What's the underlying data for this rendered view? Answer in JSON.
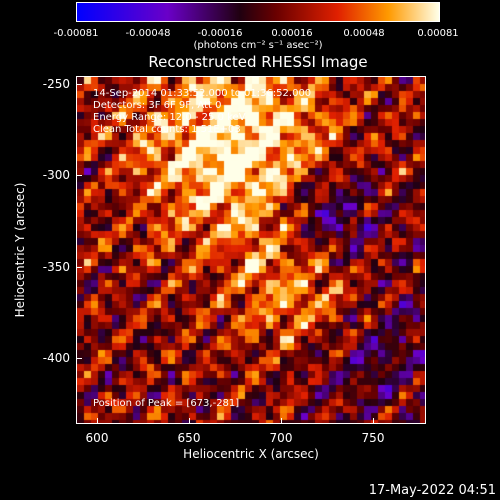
{
  "chart_data": {
    "type": "heatmap",
    "title": "Reconstructed RHESSI Image",
    "xlabel": "Heliocentric X (arcsec)",
    "ylabel": "Heliocentric Y (arcsec)",
    "xlim": [
      588,
      778
    ],
    "ylim": [
      -437,
      -244
    ],
    "x_ticks": [
      "600",
      "650",
      "700",
      "750"
    ],
    "y_ticks": [
      "-250",
      "-300",
      "-350",
      "-400"
    ],
    "colorbar": {
      "ticks": [
        "-0.00081",
        "-0.00048",
        "-0.00016",
        "0.00016",
        "0.00048",
        "0.00081"
      ],
      "units": "(photons cm⁻² s⁻¹ asec⁻²)",
      "range": [
        -0.00081,
        0.00081
      ]
    },
    "annotations": {
      "time_range": "14-Sep-2014 01:33:52.000 to 01:36:52.000",
      "detectors": "Detectors: 3F 6F 9F, Att 0",
      "energy": "Energy Range: 12.0 - 25.0 keV",
      "clean": "Clean    Total counts: 1.51E+03",
      "peak": "Position of Peak = [673,-281]"
    },
    "peak": {
      "x": 673,
      "y": -281
    }
  },
  "footer": {
    "timestamp": "17-May-2022 04:51"
  }
}
